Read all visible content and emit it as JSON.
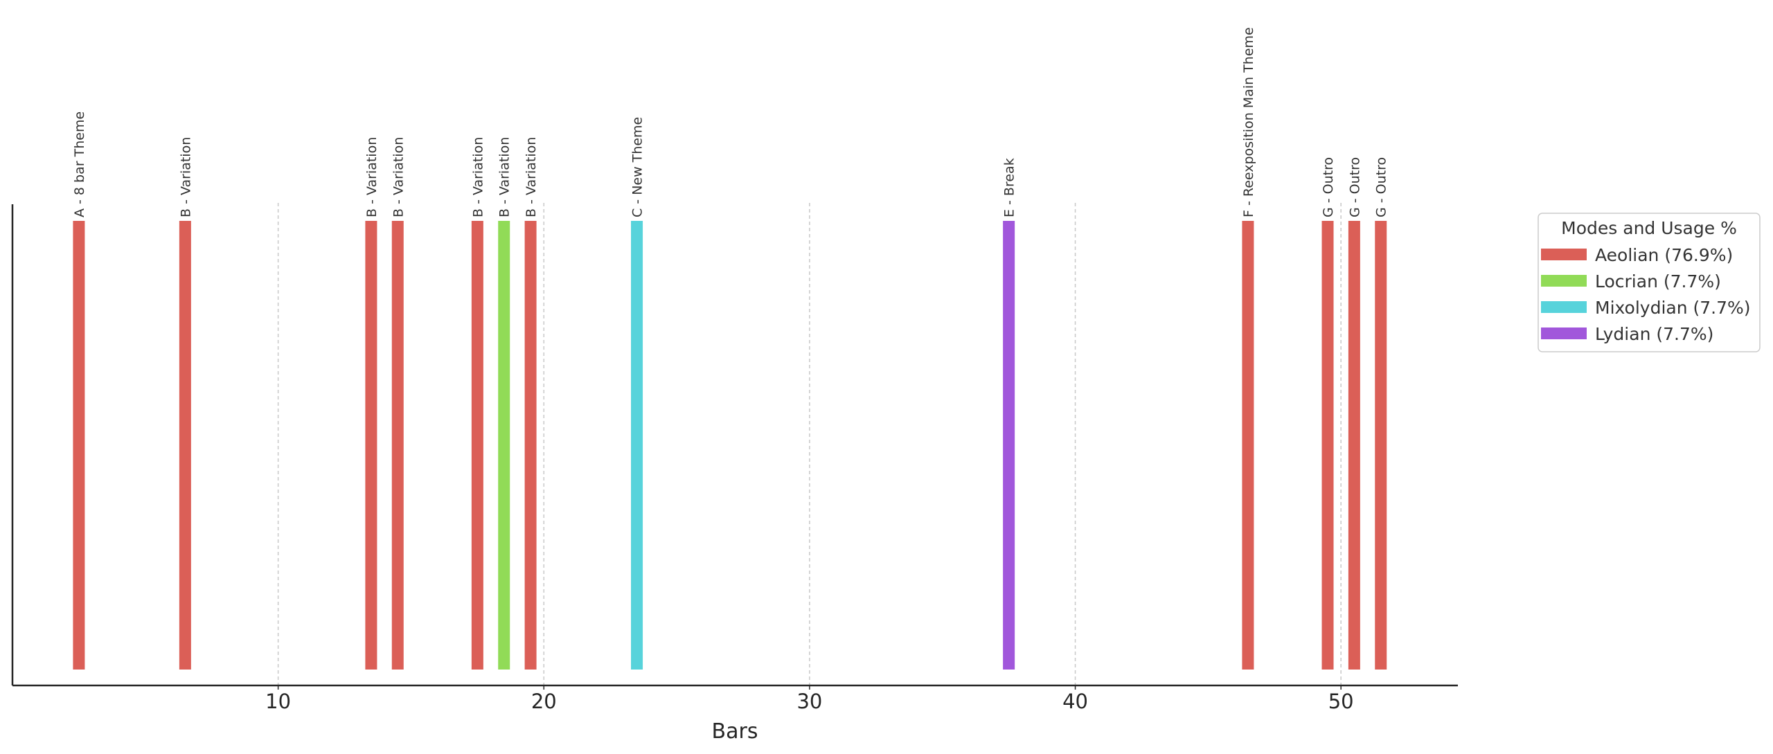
{
  "chart_data": {
    "type": "bar",
    "title": "",
    "xlabel": "Bars",
    "ylabel": "",
    "xlim": [
      0.0,
      54.4
    ],
    "xticks": [
      10,
      20,
      30,
      40,
      50
    ],
    "grid": "vertical dashed",
    "legend": {
      "title": "Modes and Usage %",
      "placement": "right",
      "entries": [
        {
          "label": "Aeolian (76.9%)",
          "mode": "Aeolian",
          "color": "#db5f57"
        },
        {
          "label": "Locrian (7.7%)",
          "mode": "Locrian",
          "color": "#91db57"
        },
        {
          "label": "Mixolydian (7.7%)",
          "mode": "Mixolydian",
          "color": "#57d3db"
        },
        {
          "label": "Lydian (7.7%)",
          "mode": "Lydian",
          "color": "#a157db"
        }
      ]
    },
    "bars": [
      {
        "x": 2.5,
        "label": "A - 8 bar Theme",
        "mode": "Aeolian"
      },
      {
        "x": 6.5,
        "label": "B - Variation",
        "mode": "Aeolian"
      },
      {
        "x": 13.5,
        "label": "B - Variation",
        "mode": "Aeolian"
      },
      {
        "x": 14.5,
        "label": "B - Variation",
        "mode": "Aeolian"
      },
      {
        "x": 17.5,
        "label": "B - Variation",
        "mode": "Aeolian"
      },
      {
        "x": 18.5,
        "label": "B - Variation",
        "mode": "Locrian"
      },
      {
        "x": 19.5,
        "label": "B - Variation",
        "mode": "Aeolian"
      },
      {
        "x": 23.5,
        "label": "C - New Theme",
        "mode": "Mixolydian"
      },
      {
        "x": 37.5,
        "label": "E - Break",
        "mode": "Lydian"
      },
      {
        "x": 46.5,
        "label": "F - Reexposition Main Theme",
        "mode": "Aeolian"
      },
      {
        "x": 49.5,
        "label": "G - Outro",
        "mode": "Aeolian"
      },
      {
        "x": 50.5,
        "label": "G - Outro",
        "mode": "Aeolian"
      },
      {
        "x": 51.5,
        "label": "G - Outro",
        "mode": "Aeolian"
      }
    ]
  }
}
